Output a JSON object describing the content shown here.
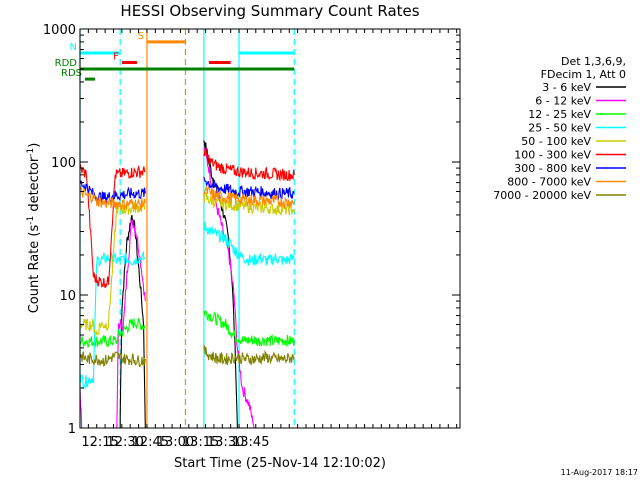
{
  "chart_data": {
    "type": "line",
    "title": "HESSI Observing Summary Count Rates",
    "xlabel": "Start Time (25-Nov-14 12:10:02)",
    "ylabel_main": "Count Rate (s",
    "ylabel_sup1": "-1",
    "ylabel_mid": " detector",
    "ylabel_sup2": "-1",
    "ylabel_end": ")",
    "footer": "11-Aug-2017 18:17",
    "y_scale": "log",
    "ylim": [
      1,
      1000
    ],
    "xlim_min": [
      723,
      950
    ],
    "x_ticks": [
      {
        "min": 735,
        "label": "12:15"
      },
      {
        "min": 750,
        "label": "12:30"
      },
      {
        "min": 765,
        "label": "12:45"
      },
      {
        "min": 780,
        "label": "13:00"
      },
      {
        "min": 795,
        "label": "13:15"
      },
      {
        "min": 810,
        "label": "13:30"
      },
      {
        "min": 825,
        "label": "13:45"
      }
    ],
    "y_ticks": [
      {
        "value": 1,
        "label": "1"
      },
      {
        "value": 10,
        "label": "10"
      },
      {
        "value": 100,
        "label": "100"
      },
      {
        "value": 1000,
        "label": "1000"
      }
    ],
    "legend_header": [
      "Det 1,3,6,9,",
      "FDecim 1, Att 0"
    ],
    "series": [
      {
        "name": "3 - 6 keV",
        "color": "#000000",
        "segments": [
          [
            [
              739,
              1
            ],
            [
              741,
              1
            ],
            [
              746,
              1
            ],
            [
              747,
              1
            ],
            [
              747,
              1.2
            ],
            [
              748,
              8
            ],
            [
              751,
              25
            ],
            [
              754,
              40
            ],
            [
              756,
              30
            ],
            [
              759,
              12
            ],
            [
              761,
              6
            ],
            [
              762,
              1
            ]
          ],
          [
            [
              797,
              150
            ],
            [
              800,
              100
            ],
            [
              803,
              70
            ],
            [
              806,
              55
            ],
            [
              809,
              40
            ],
            [
              812,
              25
            ],
            [
              814,
              12
            ],
            [
              816,
              3
            ],
            [
              817,
              1
            ],
            [
              820,
              1
            ]
          ]
        ]
      },
      {
        "name": "6 - 12 keV",
        "color": "#ff00ff",
        "segments": [
          [
            [
              723,
              2
            ],
            [
              724,
              1
            ],
            [
              745,
              1
            ],
            [
              746,
              6
            ],
            [
              749,
              6
            ],
            [
              751,
              14
            ],
            [
              754,
              38
            ],
            [
              757,
              28
            ],
            [
              760,
              15
            ],
            [
              762,
              9
            ]
          ],
          [
            [
              797,
              125
            ],
            [
              800,
              90
            ],
            [
              803,
              55
            ],
            [
              806,
              40
            ],
            [
              809,
              28
            ],
            [
              812,
              20
            ],
            [
              815,
              10
            ],
            [
              817,
              4
            ],
            [
              820,
              2
            ],
            [
              824,
              1.5
            ],
            [
              827,
              1
            ]
          ]
        ]
      },
      {
        "name": "12 - 25 keV",
        "color": "#00ff00",
        "segments": [
          [
            [
              723,
              4.5
            ],
            [
              731,
              4.5
            ],
            [
              736,
              4.5
            ],
            [
              745,
              4.5
            ],
            [
              746,
              5
            ],
            [
              750,
              5.5
            ],
            [
              753,
              6
            ],
            [
              756,
              6.2
            ],
            [
              759,
              6
            ],
            [
              762,
              5.8
            ]
          ],
          [
            [
              797,
              7.5
            ],
            [
              801,
              7
            ],
            [
              805,
              6.5
            ],
            [
              810,
              6
            ],
            [
              815,
              5
            ],
            [
              821,
              4.5
            ],
            [
              826,
              4.6
            ],
            [
              829,
              4.5
            ],
            [
              833,
              4.6
            ],
            [
              837,
              4.5
            ],
            [
              841,
              4.5
            ],
            [
              845,
              4.6
            ],
            [
              848,
              4.5
            ],
            [
              851,
              4.5
            ]
          ]
        ]
      },
      {
        "name": "25 - 50 keV",
        "color": "#00ffff",
        "segments": [
          [
            [
              723,
              2.5
            ],
            [
              725,
              2.2
            ],
            [
              731,
              2.4
            ],
            [
              733,
              18
            ],
            [
              740,
              19
            ],
            [
              747,
              18
            ],
            [
              750,
              19
            ],
            [
              755,
              18
            ],
            [
              758,
              19
            ],
            [
              762,
              19
            ]
          ],
          [
            [
              797,
              33
            ],
            [
              800,
              31
            ],
            [
              803,
              29
            ],
            [
              806,
              28
            ],
            [
              809,
              27
            ],
            [
              812,
              25
            ],
            [
              815,
              22
            ],
            [
              818,
              20
            ],
            [
              821,
              19
            ],
            [
              826,
              18
            ],
            [
              830,
              19
            ],
            [
              835,
              18
            ],
            [
              840,
              19
            ],
            [
              845,
              18
            ],
            [
              851,
              19
            ]
          ]
        ]
      },
      {
        "name": "50 - 100 keV",
        "color": "#cccc00",
        "segments": [
          [
            [
              723,
              6
            ],
            [
              731,
              6
            ],
            [
              733,
              5
            ],
            [
              735,
              6
            ],
            [
              740,
              6
            ],
            [
              745,
              45
            ],
            [
              750,
              44
            ],
            [
              755,
              45
            ],
            [
              758,
              46
            ],
            [
              762,
              45
            ]
          ],
          [
            [
              797,
              55
            ],
            [
              800,
              52
            ],
            [
              803,
              50
            ],
            [
              808,
              49
            ],
            [
              812,
              48
            ],
            [
              818,
              47
            ],
            [
              824,
              46
            ],
            [
              830,
              45
            ],
            [
              836,
              45
            ],
            [
              842,
              44
            ],
            [
              848,
              44
            ],
            [
              851,
              44
            ]
          ]
        ]
      },
      {
        "name": "100 - 300 keV",
        "color": "#ff0000",
        "segments": [
          [
            [
              723,
              90
            ],
            [
              727,
              80
            ],
            [
              731,
              14
            ],
            [
              733,
              13
            ],
            [
              736,
              12.5
            ],
            [
              740,
              12.5
            ],
            [
              744,
              80
            ],
            [
              750,
              82
            ],
            [
              755,
              84
            ],
            [
              758,
              84
            ],
            [
              762,
              85
            ]
          ],
          [
            [
              797,
              120
            ],
            [
              801,
              100
            ],
            [
              806,
              92
            ],
            [
              811,
              88
            ],
            [
              816,
              85
            ],
            [
              822,
              84
            ],
            [
              828,
              82
            ],
            [
              834,
              82
            ],
            [
              840,
              81
            ],
            [
              846,
              80
            ],
            [
              851,
              80
            ]
          ]
        ]
      },
      {
        "name": "300 - 800 keV",
        "color": "#0000ff",
        "segments": [
          [
            [
              723,
              70
            ],
            [
              727,
              65
            ],
            [
              731,
              57
            ],
            [
              733,
              55
            ],
            [
              738,
              54
            ],
            [
              744,
              56
            ],
            [
              750,
              57
            ],
            [
              755,
              58
            ],
            [
              758,
              58
            ],
            [
              762,
              58
            ]
          ],
          [
            [
              797,
              75
            ],
            [
              801,
              68
            ],
            [
              806,
              64
            ],
            [
              811,
              62
            ],
            [
              816,
              60
            ],
            [
              822,
              60
            ],
            [
              828,
              60
            ],
            [
              834,
              59
            ],
            [
              840,
              58
            ],
            [
              846,
              58
            ],
            [
              851,
              58
            ]
          ]
        ]
      },
      {
        "name": "800 - 7000 keV",
        "color": "#ff8800",
        "segments": [
          [
            [
              723,
              60
            ],
            [
              727,
              56
            ],
            [
              731,
              55
            ],
            [
              733,
              51
            ],
            [
              738,
              49
            ],
            [
              744,
              49
            ],
            [
              750,
              48
            ],
            [
              755,
              49
            ],
            [
              758,
              48
            ],
            [
              762,
              49
            ]
          ],
          [
            [
              797,
              62
            ],
            [
              801,
              58
            ],
            [
              806,
              55
            ],
            [
              811,
              54
            ],
            [
              816,
              53
            ],
            [
              822,
              52
            ],
            [
              828,
              52
            ],
            [
              834,
              51
            ],
            [
              840,
              51
            ],
            [
              846,
              50
            ],
            [
              851,
              50
            ]
          ]
        ]
      },
      {
        "name": "7000 - 20000 keV",
        "color": "#808000",
        "segments": [
          [
            [
              723,
              3.5
            ],
            [
              727,
              3.3
            ],
            [
              731,
              3.3
            ],
            [
              733,
              3.3
            ],
            [
              738,
              3.2
            ],
            [
              744,
              3.5
            ],
            [
              750,
              3.3
            ],
            [
              755,
              3.3
            ],
            [
              758,
              3.2
            ],
            [
              762,
              3.3
            ]
          ],
          [
            [
              797,
              3.8
            ],
            [
              801,
              3.5
            ],
            [
              806,
              3.3
            ],
            [
              811,
              3.3
            ],
            [
              816,
              3.4
            ],
            [
              822,
              3.3
            ],
            [
              828,
              3.3
            ],
            [
              834,
              3.4
            ],
            [
              840,
              3.3
            ],
            [
              846,
              3.3
            ],
            [
              851,
              3.4
            ]
          ]
        ]
      }
    ],
    "flag_bars": [
      {
        "name": "N",
        "label": "N",
        "color": "#00ffff",
        "value": 660,
        "x_start": 723,
        "x_end": 747
      },
      {
        "name": "N-right",
        "label": "",
        "color": "#00ffff",
        "value": 660,
        "x_start": 818,
        "x_end": 851
      },
      {
        "name": "F",
        "label": "F",
        "color": "#ff0000",
        "value": 560,
        "x_start": 748,
        "x_end": 757
      },
      {
        "name": "F-right",
        "label": "",
        "color": "#ff0000",
        "value": 560,
        "x_start": 800,
        "x_end": 813
      },
      {
        "name": "S",
        "label": "S",
        "color": "#ff8800",
        "value": 800,
        "x_start": 763,
        "x_end": 786
      },
      {
        "name": "RDD",
        "label": "RDD",
        "color": "#008000",
        "value": 500,
        "x_start": 723,
        "x_end": 851
      },
      {
        "name": "RDS",
        "label": "RDS",
        "color": "#008000",
        "value": 420,
        "x_start": 726,
        "x_end": 732
      }
    ],
    "vertical_lines": [
      {
        "x": 723,
        "color": "#00ffff",
        "style": "solid"
      },
      {
        "x": 747,
        "color": "#00ffff",
        "style": "dashed"
      },
      {
        "x": 763,
        "color": "#ff8800",
        "style": "solid"
      },
      {
        "x": 786,
        "color": "#ff8800",
        "style": "dashed"
      },
      {
        "x": 797,
        "color": "#00ffff",
        "style": "solid"
      },
      {
        "x": 818,
        "color": "#00ffff",
        "style": "solid"
      },
      {
        "x": 851,
        "color": "#00ffff",
        "style": "dashed"
      }
    ]
  }
}
